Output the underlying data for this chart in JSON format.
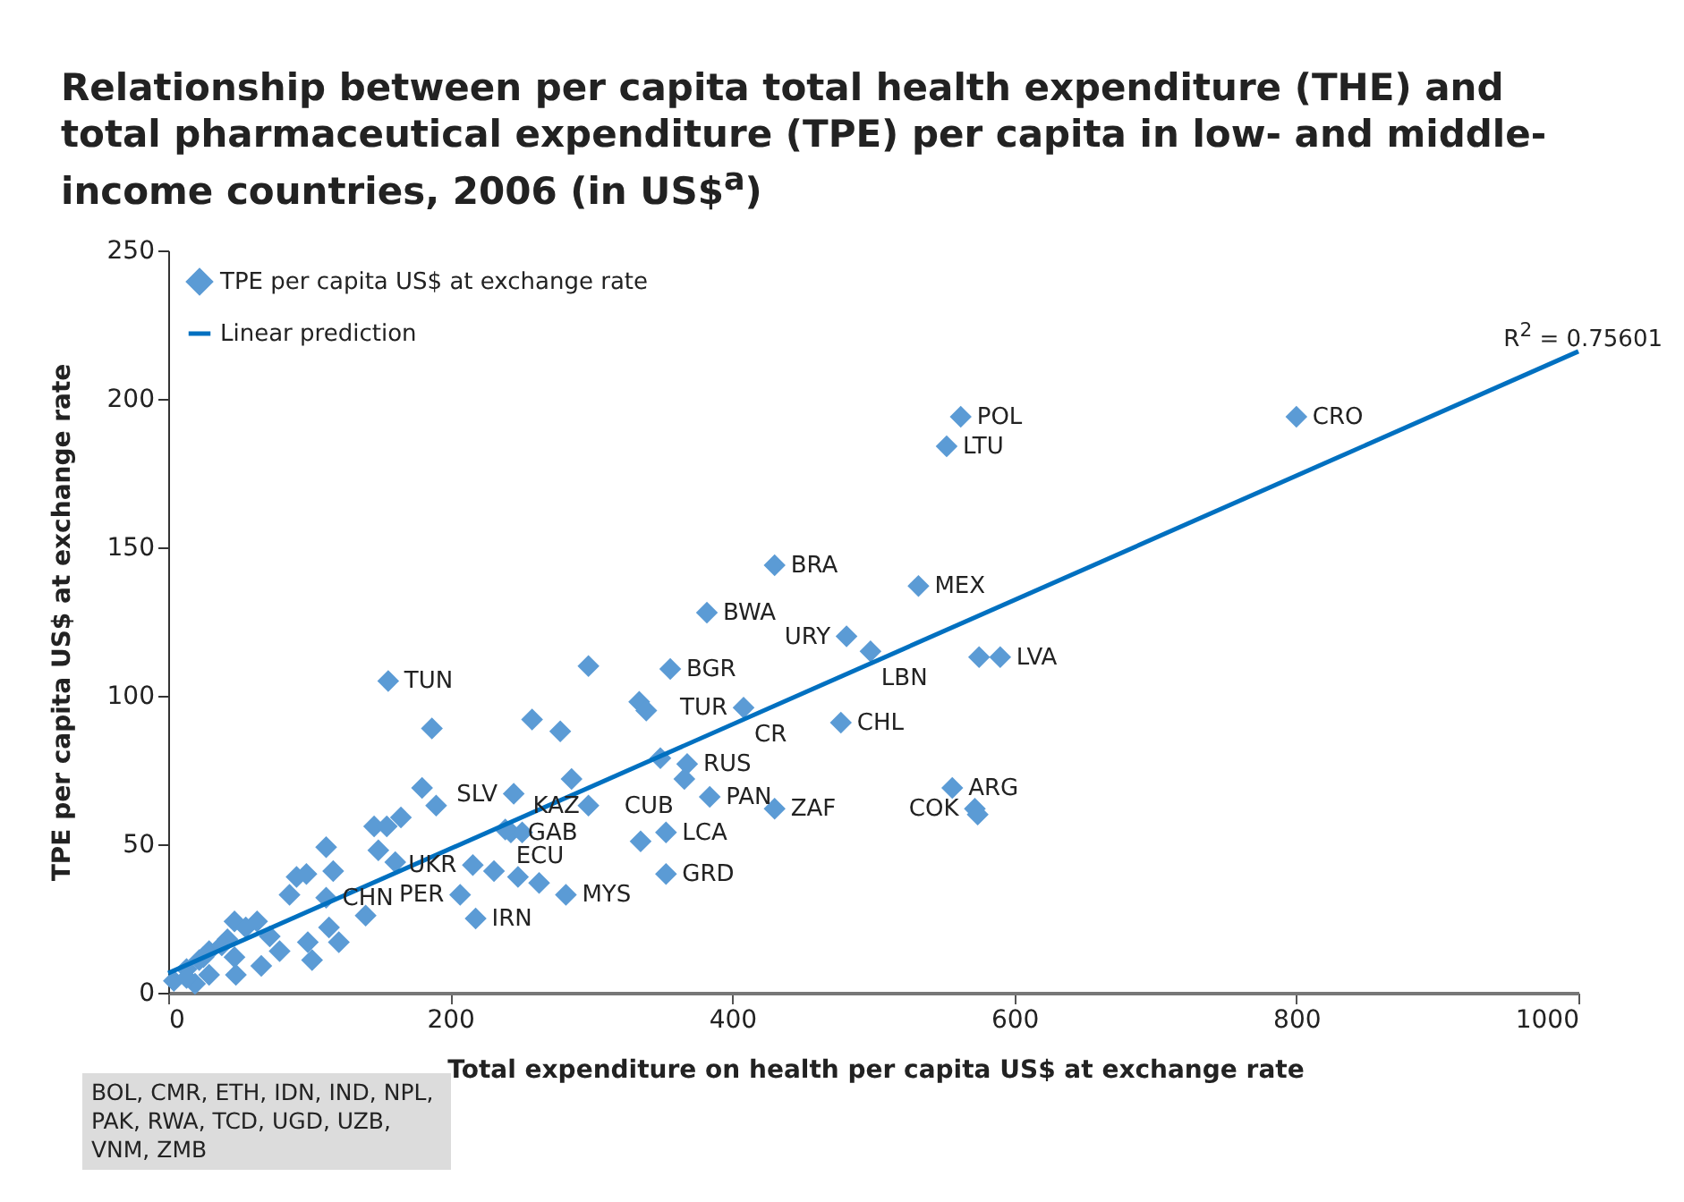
{
  "chart_data": {
    "type": "scatter",
    "title": "Relationship between per capita total health expenditure (THE) and total pharmaceutical expenditure (TPE) per capita in low- and middle-income countries, 2006 (in US$$^{a}$)",
    "xlabel": "Total expenditure on health per capita US$ at exchange rate",
    "ylabel": "TPE per capita US$ at exchange rate",
    "xlim": [
      0,
      1000
    ],
    "xticks": [
      0,
      200,
      400,
      600,
      800,
      {
        "value": 1000,
        "label": "1000"
      }
    ],
    "ylim": [
      0,
      250
    ],
    "yticks": [
      0,
      50,
      100,
      150,
      200,
      250
    ],
    "legend": "top left",
    "series": [
      {
        "name": "TPE per capita US$ at exchange rate",
        "marker": "diamond",
        "color": "#5b9bd5",
        "x": [
          800,
          562,
          552,
          430,
          532,
          382,
          481,
          498,
          575,
          590,
          156,
          356,
          298,
          408,
          477,
          334,
          339,
          258,
          278,
          187,
          368,
          349,
          556,
          572,
          574,
          430,
          286,
          245,
          298,
          366,
          384,
          353,
          335,
          353,
          243,
          251,
          239,
          216,
          231,
          248,
          263,
          282,
          218,
          207,
          180,
          190,
          146,
          165,
          155,
          149,
          161,
          112,
          117,
          91,
          98,
          86,
          112,
          140,
          114,
          121,
          99,
          102,
          63,
          79,
          66,
          47,
          42,
          48,
          29,
          22,
          13,
          4,
          29,
          19,
          38,
          25,
          13,
          55,
          47,
          72
        ],
        "values": [
          194,
          194,
          184,
          144,
          137,
          128,
          120,
          115,
          113,
          113,
          105,
          109,
          110,
          96,
          91,
          98,
          95,
          92,
          88,
          89,
          77,
          79,
          69,
          62,
          60,
          62,
          72,
          67,
          63,
          72,
          66,
          54,
          51,
          40,
          54,
          54,
          55,
          43,
          41,
          39,
          37,
          33,
          25,
          33,
          69,
          63,
          56,
          59,
          56,
          48,
          44,
          49,
          41,
          39,
          40,
          33,
          32,
          26,
          22,
          17,
          17,
          11,
          24,
          14,
          9,
          24,
          18,
          6,
          14,
          11,
          8,
          4,
          6,
          3,
          16,
          12,
          5,
          22,
          12,
          19
        ]
      },
      {
        "name": "Linear prediction",
        "type": "line",
        "color": "#0070c0",
        "x": [
          0,
          1000
        ],
        "values": [
          6.6,
          216
        ]
      }
    ],
    "annotations": [
      {
        "text": "CRO",
        "x": 800,
        "y": 194
      },
      {
        "text": "POL",
        "x": 562,
        "y": 194
      },
      {
        "text": "LTU",
        "x": 552,
        "y": 184
      },
      {
        "text": "BRA",
        "x": 430,
        "y": 144
      },
      {
        "text": "MEX",
        "x": 532,
        "y": 137
      },
      {
        "text": "BWA",
        "x": 382,
        "y": 128
      },
      {
        "text": "URY",
        "x": 481,
        "y": 120
      },
      {
        "text": "LBN",
        "x": 498,
        "y": 115
      },
      {
        "text": "LVA",
        "x": 590,
        "y": 113
      },
      {
        "text": "TUN",
        "x": 156,
        "y": 105
      },
      {
        "text": "BGR",
        "x": 356,
        "y": 109
      },
      {
        "text": "TUR",
        "x": 408,
        "y": 96
      },
      {
        "text": "CR",
        "x": 408,
        "y": 96
      },
      {
        "text": "CHL",
        "x": 477,
        "y": 91
      },
      {
        "text": "RUS",
        "x": 368,
        "y": 77
      },
      {
        "text": "CUB",
        "x": 366,
        "y": 72
      },
      {
        "text": "GAB",
        "x": 298,
        "y": 63
      },
      {
        "text": "PAN",
        "x": 384,
        "y": 66
      },
      {
        "text": "ZAF",
        "x": 430,
        "y": 62
      },
      {
        "text": "ARG",
        "x": 556,
        "y": 69
      },
      {
        "text": "COK",
        "x": 572,
        "y": 62
      },
      {
        "text": "SLV",
        "x": 245,
        "y": 67
      },
      {
        "text": "ECU",
        "x": 239,
        "y": 55
      },
      {
        "text": "KAZ",
        "x": 251,
        "y": 54
      },
      {
        "text": "LCA",
        "x": 353,
        "y": 54
      },
      {
        "text": "GRD",
        "x": 353,
        "y": 40
      },
      {
        "text": "UKR",
        "x": 216,
        "y": 43
      },
      {
        "text": "PER",
        "x": 207,
        "y": 33
      },
      {
        "text": "CHN",
        "x": 112,
        "y": 32
      },
      {
        "text": "MYS",
        "x": 282,
        "y": 33
      },
      {
        "text": "IRN",
        "x": 218,
        "y": 25
      },
      "R$^{2}$ = 0.75601",
      "BOL, CMR, ETH, IDN, IND, NPL, PAK, RWA, TCD, UGD, UZB, VNM, ZMB"
    ]
  }
}
